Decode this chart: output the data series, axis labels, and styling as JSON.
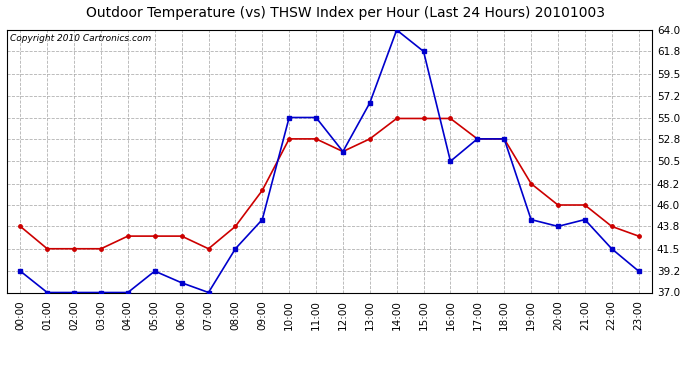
{
  "title": "Outdoor Temperature (vs) THSW Index per Hour (Last 24 Hours) 20101003",
  "copyright": "Copyright 2010 Cartronics.com",
  "x_labels": [
    "00:00",
    "01:00",
    "02:00",
    "03:00",
    "04:00",
    "05:00",
    "06:00",
    "07:00",
    "08:00",
    "09:00",
    "10:00",
    "11:00",
    "12:00",
    "13:00",
    "14:00",
    "15:00",
    "16:00",
    "17:00",
    "18:00",
    "19:00",
    "20:00",
    "21:00",
    "22:00",
    "23:00"
  ],
  "temp_red": [
    43.8,
    41.5,
    41.5,
    41.5,
    42.8,
    42.8,
    42.8,
    41.5,
    43.8,
    47.5,
    52.8,
    52.8,
    51.5,
    52.8,
    54.9,
    54.9,
    54.9,
    52.8,
    52.8,
    48.2,
    46.0,
    46.0,
    43.8,
    42.8
  ],
  "thsw_blue": [
    39.2,
    37.0,
    37.0,
    37.0,
    37.0,
    39.2,
    38.0,
    37.0,
    41.5,
    44.5,
    55.0,
    55.0,
    51.5,
    56.5,
    64.0,
    61.8,
    50.5,
    52.8,
    52.8,
    44.5,
    43.8,
    44.5,
    41.5,
    39.2
  ],
  "ylim": [
    37.0,
    64.0
  ],
  "yticks": [
    37.0,
    39.2,
    41.5,
    43.8,
    46.0,
    48.2,
    50.5,
    52.8,
    55.0,
    57.2,
    59.5,
    61.8,
    64.0
  ],
  "bg_color": "#ffffff",
  "plot_bg_color": "#ffffff",
  "grid_color": "#aaaaaa",
  "red_color": "#cc0000",
  "blue_color": "#0000cc",
  "title_fontsize": 10,
  "copyright_fontsize": 6.5,
  "tick_fontsize": 7.5
}
